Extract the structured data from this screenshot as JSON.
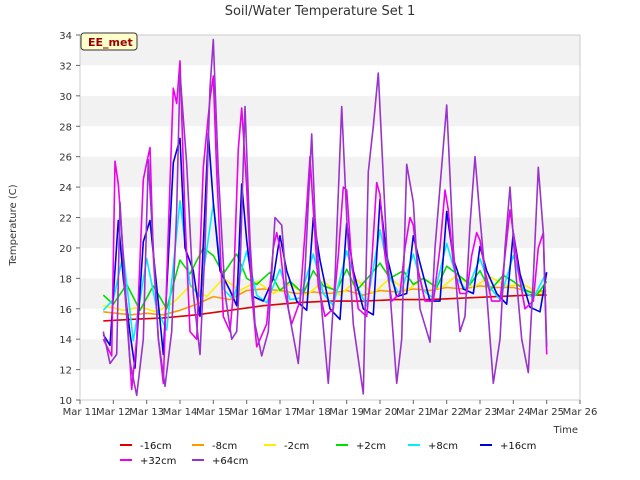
{
  "chart_data": {
    "type": "line",
    "title": "Soil/Water Temperature Set 1",
    "xlabel": "Time",
    "ylabel": "Temperature (C)",
    "ylim": [
      10,
      34
    ],
    "yticks": [
      10,
      12,
      14,
      16,
      18,
      20,
      22,
      24,
      26,
      28,
      30,
      32,
      34
    ],
    "xlim": [
      11,
      26
    ],
    "xticks": [
      {
        "x": 11,
        "label": "Mar 11"
      },
      {
        "x": 12,
        "label": "Mar 12"
      },
      {
        "x": 13,
        "label": "Mar 13"
      },
      {
        "x": 14,
        "label": "Mar 14"
      },
      {
        "x": 15,
        "label": "Mar 15"
      },
      {
        "x": 16,
        "label": "Mar 16"
      },
      {
        "x": 17,
        "label": "Mar 17"
      },
      {
        "x": 18,
        "label": "Mar 18"
      },
      {
        "x": 19,
        "label": "Mar 19"
      },
      {
        "x": 20,
        "label": "Mar 20"
      },
      {
        "x": 21,
        "label": "Mar 21"
      },
      {
        "x": 22,
        "label": "Mar 22"
      },
      {
        "x": 23,
        "label": "Mar 23"
      },
      {
        "x": 24,
        "label": "Mar 24"
      },
      {
        "x": 25,
        "label": "Mar 25"
      },
      {
        "x": 26,
        "label": "Mar 26"
      }
    ],
    "grid": "horizontal bands",
    "legend_placement": "bottom",
    "annotation": "EE_met",
    "series": [
      {
        "name": "-16cm",
        "color": "#e00000",
        "x": [
          11.7,
          12.5,
          13.5,
          14.5,
          15.5,
          16.5,
          17.5,
          18.5,
          19.5,
          20.5,
          21.5,
          22.5,
          23.5,
          24.5,
          25.0
        ],
        "y": [
          15.2,
          15.3,
          15.4,
          15.6,
          15.9,
          16.2,
          16.4,
          16.5,
          16.5,
          16.6,
          16.6,
          16.7,
          16.8,
          16.9,
          16.9
        ]
      },
      {
        "name": "-8cm",
        "color": "#ff9900",
        "x": [
          11.7,
          12.5,
          13.0,
          13.5,
          14.0,
          14.5,
          15.0,
          15.5,
          16.0,
          16.5,
          17.0,
          17.5,
          18.0,
          18.5,
          19.0,
          19.5,
          20.0,
          20.5,
          21.0,
          21.5,
          22.0,
          22.5,
          23.0,
          23.5,
          24.0,
          24.5,
          25.0
        ],
        "y": [
          15.8,
          15.6,
          15.7,
          15.6,
          15.9,
          16.3,
          16.8,
          16.6,
          17.2,
          17.3,
          17.2,
          17.0,
          17.1,
          17.0,
          17.2,
          16.9,
          17.2,
          17.1,
          17.3,
          17.2,
          17.4,
          17.3,
          17.5,
          17.4,
          17.4,
          17.1,
          17.2
        ]
      },
      {
        "name": "-2cm",
        "color": "#ffee00",
        "x": [
          11.7,
          12.3,
          12.8,
          13.3,
          13.8,
          14.3,
          14.8,
          15.3,
          15.8,
          16.3,
          16.8,
          17.3,
          17.8,
          18.3,
          18.8,
          19.3,
          19.8,
          20.3,
          20.8,
          21.3,
          21.8,
          22.3,
          22.8,
          23.3,
          23.8,
          24.3,
          24.8,
          25.0
        ],
        "y": [
          16.2,
          15.9,
          16.1,
          15.8,
          16.4,
          17.5,
          16.8,
          18.0,
          17.2,
          17.8,
          17.0,
          17.6,
          16.9,
          17.8,
          16.9,
          17.9,
          17.0,
          18.0,
          17.2,
          18.0,
          17.3,
          18.2,
          17.4,
          18.1,
          17.5,
          17.6,
          17.0,
          17.2
        ]
      },
      {
        "name": "+2cm",
        "color": "#00dd00",
        "x": [
          11.7,
          12.0,
          12.4,
          12.8,
          13.2,
          13.6,
          14.0,
          14.3,
          14.7,
          15.0,
          15.3,
          15.7,
          16.0,
          16.3,
          16.7,
          17.0,
          17.3,
          17.7,
          18.0,
          18.3,
          18.7,
          19.0,
          19.3,
          19.7,
          20.0,
          20.3,
          20.7,
          21.0,
          21.3,
          21.7,
          22.0,
          22.3,
          22.7,
          23.0,
          23.3,
          23.7,
          24.0,
          24.3,
          24.7,
          25.0
        ],
        "y": [
          16.9,
          16.3,
          17.6,
          15.9,
          17.5,
          16.0,
          19.2,
          18.3,
          20.0,
          19.5,
          18.3,
          19.6,
          18.0,
          17.6,
          18.4,
          17.2,
          17.8,
          17.0,
          18.5,
          17.5,
          17.2,
          18.6,
          17.2,
          18.2,
          19.0,
          18.0,
          18.5,
          17.6,
          18.0,
          17.4,
          18.8,
          18.3,
          17.6,
          18.5,
          17.2,
          18.2,
          17.8,
          17.3,
          16.9,
          17.8
        ]
      },
      {
        "name": "+8cm",
        "color": "#00eeff",
        "x": [
          11.7,
          12.0,
          12.3,
          12.6,
          13.0,
          13.3,
          13.6,
          14.0,
          14.3,
          14.6,
          15.0,
          15.3,
          15.6,
          16.0,
          16.3,
          16.6,
          17.0,
          17.3,
          17.6,
          18.0,
          18.3,
          18.6,
          19.0,
          19.3,
          19.6,
          20.0,
          20.3,
          20.6,
          21.0,
          21.3,
          21.6,
          22.0,
          22.3,
          22.6,
          23.0,
          23.3,
          23.6,
          24.0,
          24.3,
          24.6,
          25.0
        ],
        "y": [
          15.9,
          16.6,
          19.6,
          13.9,
          19.3,
          16.0,
          14.6,
          23.1,
          17.6,
          16.8,
          22.9,
          17.3,
          16.6,
          19.8,
          16.9,
          16.4,
          18.6,
          16.6,
          16.7,
          19.6,
          17.0,
          16.2,
          19.8,
          17.5,
          16.2,
          21.2,
          18.0,
          16.9,
          19.6,
          17.2,
          16.7,
          20.3,
          18.0,
          17.2,
          19.3,
          17.4,
          16.6,
          19.5,
          17.2,
          16.7,
          18.4
        ]
      },
      {
        "name": "+16cm",
        "color": "#0000dd",
        "x": [
          11.7,
          11.9,
          12.15,
          12.3,
          12.5,
          12.65,
          12.9,
          13.1,
          13.35,
          13.5,
          13.8,
          14.0,
          14.15,
          14.4,
          14.6,
          14.85,
          15.0,
          15.2,
          15.5,
          15.7,
          15.85,
          16.0,
          16.2,
          16.5,
          16.8,
          17.0,
          17.2,
          17.5,
          17.8,
          18.0,
          18.2,
          18.5,
          18.8,
          19.0,
          19.2,
          19.5,
          19.8,
          20.0,
          20.2,
          20.5,
          20.8,
          21.0,
          21.2,
          21.5,
          21.8,
          22.0,
          22.2,
          22.5,
          22.8,
          23.0,
          23.2,
          23.5,
          23.8,
          24.0,
          24.2,
          24.5,
          24.8,
          25.0
        ],
        "y": [
          14.3,
          13.6,
          21.8,
          18.0,
          14.4,
          12.1,
          20.4,
          21.8,
          16.4,
          13.0,
          25.6,
          27.2,
          20.0,
          18.5,
          15.5,
          27.5,
          23.0,
          18.5,
          17.2,
          16.2,
          24.2,
          20.5,
          16.8,
          16.5,
          18.0,
          20.8,
          18.5,
          16.5,
          15.9,
          22.0,
          19.2,
          16.0,
          15.3,
          21.6,
          18.5,
          16.0,
          15.6,
          23.2,
          19.5,
          16.8,
          17.0,
          20.8,
          19.0,
          16.5,
          16.5,
          22.4,
          19.3,
          17.3,
          17.0,
          20.1,
          18.5,
          17.0,
          16.3,
          21.0,
          18.3,
          16.1,
          15.8,
          18.4
        ]
      },
      {
        "name": "+32cm",
        "color": "#ee00ee",
        "x": [
          11.7,
          11.95,
          12.05,
          12.15,
          12.3,
          12.45,
          12.55,
          12.7,
          12.9,
          13.0,
          13.1,
          13.2,
          13.35,
          13.5,
          13.65,
          13.8,
          13.9,
          14.0,
          14.15,
          14.3,
          14.5,
          14.7,
          14.9,
          15.0,
          15.1,
          15.3,
          15.5,
          15.6,
          15.75,
          15.85,
          16.0,
          16.15,
          16.3,
          16.6,
          16.8,
          16.9,
          17.0,
          17.15,
          17.35,
          17.6,
          17.75,
          17.9,
          18.0,
          18.15,
          18.35,
          18.6,
          18.75,
          18.9,
          19.0,
          19.15,
          19.35,
          19.6,
          19.75,
          19.9,
          20.0,
          20.15,
          20.35,
          20.6,
          20.75,
          20.9,
          21.0,
          21.15,
          21.35,
          21.6,
          21.8,
          21.95,
          22.05,
          22.2,
          22.4,
          22.6,
          22.75,
          22.9,
          23.0,
          23.15,
          23.35,
          23.6,
          23.75,
          23.9,
          24.0,
          24.15,
          24.35,
          24.6,
          24.75,
          24.9,
          25.0
        ],
        "y": [
          14.0,
          12.9,
          25.7,
          24.2,
          19.5,
          14.3,
          10.7,
          14.0,
          24.5,
          25.6,
          26.6,
          19.5,
          14.1,
          11.1,
          21.0,
          30.5,
          29.5,
          32.3,
          22.0,
          14.5,
          14.0,
          25.3,
          29.8,
          31.3,
          25.0,
          15.5,
          14.5,
          17.0,
          26.5,
          29.2,
          24.0,
          17.0,
          13.5,
          15.0,
          20.0,
          21.0,
          20.0,
          17.0,
          15.0,
          16.5,
          21.0,
          26.0,
          22.5,
          17.5,
          15.5,
          16.0,
          19.5,
          24.0,
          23.8,
          19.0,
          16.0,
          15.5,
          19.0,
          24.3,
          23.5,
          19.5,
          16.5,
          17.0,
          20.0,
          22.0,
          21.5,
          18.5,
          16.5,
          16.5,
          20.0,
          23.8,
          22.5,
          19.0,
          17.0,
          17.0,
          19.5,
          21.0,
          20.5,
          18.5,
          16.5,
          16.5,
          19.5,
          22.5,
          21.0,
          18.5,
          16.0,
          16.5,
          20.0,
          21.0,
          13.0
        ]
      },
      {
        "name": "+64cm",
        "color": "#9933cc",
        "x": [
          11.7,
          11.9,
          12.1,
          12.2,
          12.35,
          12.5,
          12.7,
          12.9,
          13.05,
          13.2,
          13.35,
          13.55,
          13.75,
          13.9,
          14.0,
          14.2,
          14.4,
          14.6,
          14.75,
          14.9,
          15.0,
          15.15,
          15.35,
          15.55,
          15.7,
          15.8,
          15.95,
          16.1,
          16.25,
          16.45,
          16.65,
          16.85,
          17.05,
          17.25,
          17.55,
          17.75,
          17.95,
          18.05,
          18.25,
          18.45,
          18.65,
          18.85,
          19.0,
          19.2,
          19.5,
          19.65,
          19.8,
          19.95,
          20.2,
          20.5,
          20.65,
          20.8,
          21.0,
          21.2,
          21.5,
          21.65,
          21.8,
          22.0,
          22.2,
          22.4,
          22.55,
          22.7,
          22.85,
          23.0,
          23.2,
          23.4,
          23.6,
          23.75,
          23.9,
          24.05,
          24.25,
          24.45,
          24.6,
          24.75,
          24.9,
          25.0
        ],
        "y": [
          14.5,
          12.4,
          13.0,
          23.0,
          17.0,
          12.5,
          10.3,
          14.0,
          25.8,
          20.0,
          14.0,
          10.9,
          14.5,
          22.5,
          31.5,
          25.5,
          17.0,
          13.0,
          20.0,
          30.5,
          33.7,
          25.0,
          17.0,
          14.0,
          14.5,
          18.5,
          29.3,
          20.5,
          15.0,
          12.9,
          14.5,
          22.0,
          21.5,
          16.0,
          12.4,
          18.5,
          27.5,
          22.0,
          16.0,
          11.1,
          18.0,
          29.3,
          22.0,
          15.0,
          10.4,
          25.0,
          28.0,
          31.5,
          20.0,
          11.1,
          14.0,
          25.5,
          23.0,
          16.0,
          13.8,
          20.0,
          24.0,
          29.4,
          20.0,
          14.5,
          15.5,
          21.5,
          26.0,
          22.0,
          17.0,
          11.1,
          14.0,
          20.0,
          24.0,
          19.0,
          14.0,
          11.8,
          18.0,
          25.3,
          21.0,
          13.5
        ]
      }
    ]
  }
}
